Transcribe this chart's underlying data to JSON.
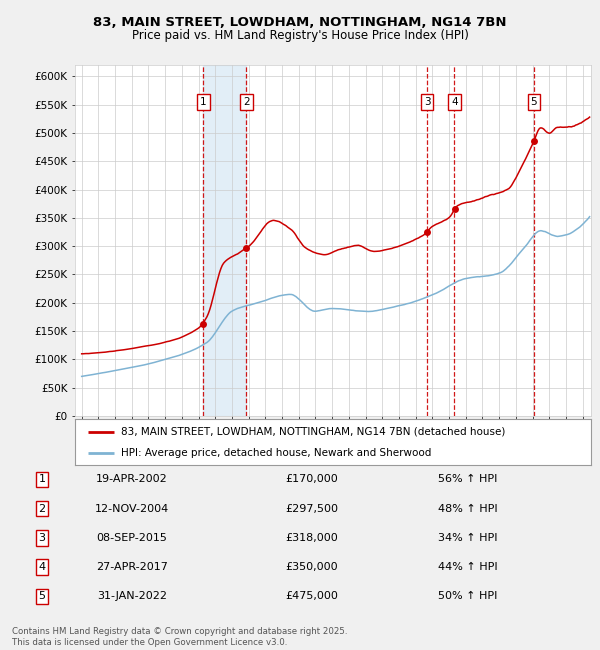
{
  "title1": "83, MAIN STREET, LOWDHAM, NOTTINGHAM, NG14 7BN",
  "title2": "Price paid vs. HM Land Registry's House Price Index (HPI)",
  "ylim": [
    0,
    620000
  ],
  "yticks": [
    0,
    50000,
    100000,
    150000,
    200000,
    250000,
    300000,
    350000,
    400000,
    450000,
    500000,
    550000,
    600000
  ],
  "xlim_start": 1994.6,
  "xlim_end": 2025.5,
  "bg_color": "#f0f0f0",
  "plot_bg_color": "#ffffff",
  "grid_color": "#cccccc",
  "transactions": [
    {
      "num": 1,
      "date_str": "19-APR-2002",
      "date_x": 2002.29,
      "price": 170000,
      "label": "56% ↑ HPI"
    },
    {
      "num": 2,
      "date_str": "12-NOV-2004",
      "date_x": 2004.87,
      "price": 297500,
      "label": "48% ↑ HPI"
    },
    {
      "num": 3,
      "date_str": "08-SEP-2015",
      "date_x": 2015.69,
      "price": 318000,
      "label": "34% ↑ HPI"
    },
    {
      "num": 4,
      "date_str": "27-APR-2017",
      "date_x": 2017.32,
      "price": 350000,
      "label": "44% ↑ HPI"
    },
    {
      "num": 5,
      "date_str": "31-JAN-2022",
      "date_x": 2022.08,
      "price": 475000,
      "label": "50% ↑ HPI"
    }
  ],
  "legend_line1": "83, MAIN STREET, LOWDHAM, NOTTINGHAM, NG14 7BN (detached house)",
  "legend_line2": "HPI: Average price, detached house, Newark and Sherwood",
  "footer": "Contains HM Land Registry data © Crown copyright and database right 2025.\nThis data is licensed under the Open Government Licence v3.0.",
  "hpi_color": "#7fb3d3",
  "price_color": "#cc0000",
  "vline_color": "#cc0000",
  "shade_color": "#d6e8f5",
  "dot_color": "#cc0000"
}
